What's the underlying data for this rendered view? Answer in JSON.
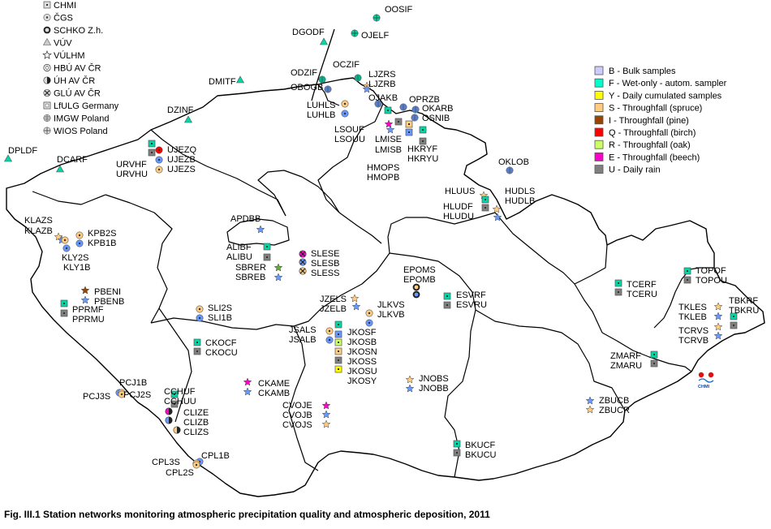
{
  "caption": "Fig. III.1  Station networks monitoring atmospheric precipitation quality and atmospheric deposition, 2011",
  "owner_legend": [
    {
      "label": "CHMI",
      "icon": "small-square-dot"
    },
    {
      "label": "ČGS",
      "icon": "dotted-circle"
    },
    {
      "label": "SCHKO Z.h.",
      "icon": "filled-ring"
    },
    {
      "label": "VÚV",
      "icon": "triangle"
    },
    {
      "label": "VÚLHM",
      "icon": "star-outline"
    },
    {
      "label": "HBÚ AV ČR",
      "icon": "circle-c"
    },
    {
      "label": "ÚH AV ČR",
      "icon": "half-circle"
    },
    {
      "label": "GLÚ AV ČR",
      "icon": "circle-x"
    },
    {
      "label": "LfULG Germany",
      "icon": "square-outline"
    },
    {
      "label": "IMGW Poland",
      "icon": "circle-grid"
    },
    {
      "label": "WIOS Poland",
      "icon": "circle-cross"
    }
  ],
  "sampler_legend": [
    {
      "label": "B - Bulk samples",
      "color": "#ccccff"
    },
    {
      "label": "F - Wet-only - autom. sampler",
      "color": "#00ffcc"
    },
    {
      "label": "Y - Daily cumulated samples",
      "color": "#ffff00"
    },
    {
      "label": "S - Throughfall (spruce)",
      "color": "#ffcc80"
    },
    {
      "label": "I - Throughfall (pine)",
      "color": "#994400"
    },
    {
      "label": "Q - Throughfall (birch)",
      "color": "#ff0000"
    },
    {
      "label": "R - Throughfall (oak)",
      "color": "#ccff66"
    },
    {
      "label": "E - Throughfall (beech)",
      "color": "#ff00cc"
    },
    {
      "label": "U - Daily rain",
      "color": "#808080"
    }
  ],
  "logo_text": "CHMI",
  "stations": [
    {
      "label": "OOSIF",
      "color": "#00d9a6",
      "shape": "circle-cross"
    },
    {
      "label": "OJELF",
      "color": "#00d9a6",
      "shape": "circle-cross"
    },
    {
      "label": "DGODF",
      "color": "#00d9a6",
      "shape": "triangle"
    },
    {
      "label": "DMITF",
      "color": "#00d9a6",
      "shape": "triangle"
    },
    {
      "label": "DZINF",
      "color": "#00d9a6",
      "shape": "triangle"
    },
    {
      "label": "DPLDF",
      "color": "#00d9a6",
      "shape": "triangle"
    },
    {
      "label": "DCARF",
      "color": "#00d9a6",
      "shape": "triangle"
    },
    {
      "label": "ODZIF",
      "color": "#00d9a6",
      "shape": "circle-grid"
    },
    {
      "label": "OBOGB",
      "color": "#6699ff",
      "shape": "circle-grid"
    },
    {
      "label": "OCZIF",
      "color": "#00d9a6",
      "shape": "circle-grid"
    },
    {
      "label": "LJZRS",
      "color": "#ffcc80",
      "shape": "star"
    },
    {
      "label": "LJZRB",
      "color": "#6699ff",
      "shape": "star"
    },
    {
      "label": "OJAKB",
      "color": "#6699ff",
      "shape": "circle-grid"
    },
    {
      "label": "OPRZB",
      "color": "#6699ff",
      "shape": "circle-grid"
    },
    {
      "label": "OKARB",
      "color": "#6699ff",
      "shape": "circle-grid"
    },
    {
      "label": "OSNIB",
      "color": "#6699ff",
      "shape": "circle-grid"
    },
    {
      "label": "LUHLS",
      "color": "#ffcc80",
      "shape": "circle-c"
    },
    {
      "label": "LUHLB",
      "color": "#6699ff",
      "shape": "circle-c"
    },
    {
      "label": "LSOUF",
      "color": "#00d9a6",
      "shape": "square"
    },
    {
      "label": "LSOUU",
      "color": "#808080",
      "shape": "square"
    },
    {
      "label": "LMISE",
      "color": "#ff00cc",
      "shape": "star"
    },
    {
      "label": "LMISB",
      "color": "#6699ff",
      "shape": "star"
    },
    {
      "label": "HKRYF",
      "color": "#00d9a6",
      "shape": "square"
    },
    {
      "label": "HKRYU",
      "color": "#808080",
      "shape": "square"
    },
    {
      "label": "HMOPS",
      "color": "#ffcc80",
      "shape": "square"
    },
    {
      "label": "HMOPB",
      "color": "#6699ff",
      "shape": "square"
    },
    {
      "label": "UJEZQ",
      "color": "#ff0000",
      "shape": "circle-c"
    },
    {
      "label": "URVHF",
      "color": "#00d9a6",
      "shape": "square"
    },
    {
      "label": "UJEZB",
      "color": "#6699ff",
      "shape": "circle-c"
    },
    {
      "label": "URVHU",
      "color": "#808080",
      "shape": "square"
    },
    {
      "label": "UJEZS",
      "color": "#ffcc80",
      "shape": "circle-c"
    },
    {
      "label": "OKLOB",
      "color": "#6699ff",
      "shape": "circle-grid"
    },
    {
      "label": "HLUUS",
      "color": "#ffcc80",
      "shape": "star"
    },
    {
      "label": "HLUDF",
      "color": "#00d9a6",
      "shape": "square"
    },
    {
      "label": "HLUDU",
      "color": "#808080",
      "shape": "square"
    },
    {
      "label": "HUDLS",
      "color": "#ffcc80",
      "shape": "star"
    },
    {
      "label": "HUDLB",
      "color": "#6699ff",
      "shape": "star"
    },
    {
      "label": "KLAZS",
      "color": "#ffcc80",
      "shape": "star"
    },
    {
      "label": "KLAZB",
      "color": "#6699ff",
      "shape": "star"
    },
    {
      "label": "KPB2S",
      "color": "#ffcc80",
      "shape": "circle-c"
    },
    {
      "label": "KPB1B",
      "color": "#6699ff",
      "shape": "circle-c"
    },
    {
      "label": "KLY2S",
      "color": "#ffcc80",
      "shape": "circle-c"
    },
    {
      "label": "KLY1B",
      "color": "#6699ff",
      "shape": "circle-c"
    },
    {
      "label": "APDBB",
      "color": "#6699ff",
      "shape": "star"
    },
    {
      "label": "ALIBF",
      "color": "#00d9a6",
      "shape": "square"
    },
    {
      "label": "ALIBU",
      "color": "#808080",
      "shape": "square"
    },
    {
      "label": "SLESE",
      "color": "#ff00cc",
      "shape": "circle-x"
    },
    {
      "label": "SLESB",
      "color": "#6699ff",
      "shape": "circle-x"
    },
    {
      "label": "SLESS",
      "color": "#ffcc80",
      "shape": "circle-x"
    },
    {
      "label": "SBRER",
      "color": "#66aa33",
      "shape": "star"
    },
    {
      "label": "SBREB",
      "color": "#6699ff",
      "shape": "star"
    },
    {
      "label": "EPOMS",
      "color": "#ffcc80",
      "shape": "ring"
    },
    {
      "label": "EPOMB",
      "color": "#6699ff",
      "shape": "ring"
    },
    {
      "label": "ESVRF",
      "color": "#00d9a6",
      "shape": "square"
    },
    {
      "label": "ESVRU",
      "color": "#808080",
      "shape": "square"
    },
    {
      "label": "PBENI",
      "color": "#994400",
      "shape": "star"
    },
    {
      "label": "PBENB",
      "color": "#6699ff",
      "shape": "star"
    },
    {
      "label": "PPRMF",
      "color": "#00d9a6",
      "shape": "square"
    },
    {
      "label": "PPRMU",
      "color": "#808080",
      "shape": "square"
    },
    {
      "label": "SLI2S",
      "color": "#ffcc80",
      "shape": "circle-c"
    },
    {
      "label": "SLI1B",
      "color": "#6699ff",
      "shape": "circle-c"
    },
    {
      "label": "JZELS",
      "color": "#ffcc80",
      "shape": "star"
    },
    {
      "label": "JZELB",
      "color": "#6699ff",
      "shape": "star"
    },
    {
      "label": "JLKVS",
      "color": "#ffcc80",
      "shape": "circle-c"
    },
    {
      "label": "JLKVB",
      "color": "#6699ff",
      "shape": "circle-c"
    },
    {
      "label": "JSALS",
      "color": "#ffcc80",
      "shape": "circle-c"
    },
    {
      "label": "JSALB",
      "color": "#6699ff",
      "shape": "circle-c"
    },
    {
      "label": "JKOSF",
      "color": "#00d9a6",
      "shape": "square"
    },
    {
      "label": "JKOSB",
      "color": "#6699ff",
      "shape": "square"
    },
    {
      "label": "JKOSN",
      "color": "#ccff66",
      "shape": "square"
    },
    {
      "label": "JKOSS",
      "color": "#ffcc80",
      "shape": "square"
    },
    {
      "label": "JKOSU",
      "color": "#808080",
      "shape": "square"
    },
    {
      "label": "JKOSY",
      "color": "#ffff00",
      "shape": "square"
    },
    {
      "label": "CKOCF",
      "color": "#00d9a6",
      "shape": "square"
    },
    {
      "label": "CKOCU",
      "color": "#808080",
      "shape": "square"
    },
    {
      "label": "TCERF",
      "color": "#00d9a6",
      "shape": "square"
    },
    {
      "label": "TCERU",
      "color": "#808080",
      "shape": "square"
    },
    {
      "label": "TOPOF",
      "color": "#00d9a6",
      "shape": "square"
    },
    {
      "label": "TOPOU",
      "color": "#808080",
      "shape": "square"
    },
    {
      "label": "TKLES",
      "color": "#ffcc80",
      "shape": "star"
    },
    {
      "label": "TKLEB",
      "color": "#6699ff",
      "shape": "star"
    },
    {
      "label": "TBKRF",
      "color": "#00d9a6",
      "shape": "square"
    },
    {
      "label": "TBKRU",
      "color": "#808080",
      "shape": "square"
    },
    {
      "label": "TCRVS",
      "color": "#ffcc80",
      "shape": "star"
    },
    {
      "label": "TCRVB",
      "color": "#6699ff",
      "shape": "star"
    },
    {
      "label": "ZMARF",
      "color": "#00d9a6",
      "shape": "square"
    },
    {
      "label": "ZMARU",
      "color": "#808080",
      "shape": "square"
    },
    {
      "label": "CKAME",
      "color": "#ff00cc",
      "shape": "star"
    },
    {
      "label": "CKAMB",
      "color": "#6699ff",
      "shape": "star"
    },
    {
      "label": "PCJ1B",
      "color": "#6699ff",
      "shape": "circle-c"
    },
    {
      "label": "PCJ3S",
      "color": "#ffcc80",
      "shape": "circle-c"
    },
    {
      "label": "PCJ2S",
      "color": "#ffcc80",
      "shape": "circle-c"
    },
    {
      "label": "JNOBS",
      "color": "#ffcc80",
      "shape": "star"
    },
    {
      "label": "JNOBB",
      "color": "#6699ff",
      "shape": "star"
    },
    {
      "label": "CCHUF",
      "color": "#00d9a6",
      "shape": "square"
    },
    {
      "label": "CCHUU",
      "color": "#808080",
      "shape": "square"
    },
    {
      "label": "CLIZE",
      "color": "#ff00cc",
      "shape": "half-circle"
    },
    {
      "label": "CLIZB",
      "color": "#6699ff",
      "shape": "half-circle"
    },
    {
      "label": "CLIZS",
      "color": "#ffcc80",
      "shape": "half-circle"
    },
    {
      "label": "CVOJE",
      "color": "#ff00cc",
      "shape": "star"
    },
    {
      "label": "CVOJB",
      "color": "#6699ff",
      "shape": "star"
    },
    {
      "label": "CVOJS",
      "color": "#ffcc80",
      "shape": "star"
    },
    {
      "label": "ZBUCB",
      "color": "#6699ff",
      "shape": "star"
    },
    {
      "label": "ZBUCR",
      "color": "#ffcc80",
      "shape": "star"
    },
    {
      "label": "BKUCF",
      "color": "#00d9a6",
      "shape": "square"
    },
    {
      "label": "BKUCU",
      "color": "#808080",
      "shape": "square"
    },
    {
      "label": "CPL1B",
      "color": "#6699ff",
      "shape": "circle-c"
    },
    {
      "label": "CPL3S",
      "color": "#ffcc80",
      "shape": "circle-c"
    },
    {
      "label": "CPL2S",
      "color": "#ffcc80",
      "shape": "circle-c"
    }
  ]
}
